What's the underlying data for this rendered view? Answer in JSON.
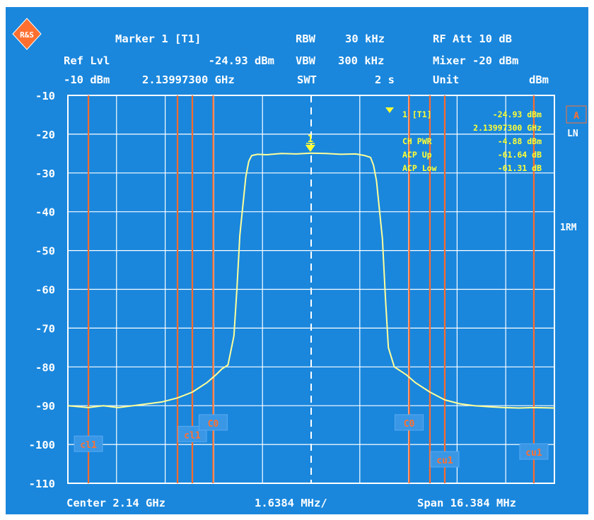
{
  "logo": "R&S",
  "header": {
    "row1": {
      "marker": "Marker 1 [T1]",
      "rbw_label": "RBW",
      "rbw_value": "30 kHz",
      "rf_att": "RF Att 10 dB"
    },
    "row2": {
      "ref_lvl_label": "Ref Lvl",
      "marker_level": "-24.93 dBm",
      "vbw_label": "VBW",
      "vbw_value": "300 kHz",
      "mixer": "Mixer -20 dBm"
    },
    "row3": {
      "ref_lvl_value": "-10 dBm",
      "marker_freq": "2.13997300 GHz",
      "swt_label": "SWT",
      "swt_value": "2 s",
      "unit_label": "Unit",
      "unit_value": "dBm"
    }
  },
  "marker_box": {
    "rows": [
      {
        "label": "1 [T1]",
        "value": "-24.93 dBm"
      },
      {
        "label": "",
        "value": "2.13997300 GHz"
      },
      {
        "label": "CH PWR",
        "value": "-4.88 dBm"
      },
      {
        "label": "ACP Up",
        "value": "-61.64 dB"
      },
      {
        "label": "ACP Low",
        "value": "-61.31 dB"
      }
    ]
  },
  "side_labels": {
    "trace_a": "A",
    "ln": "LN",
    "rm": "1RM"
  },
  "footer": {
    "center": "Center 2.14 GHz",
    "per_div": "1.6384 MHz/",
    "span": "Span 16.384 MHz"
  },
  "colors": {
    "background": "#1a87dd",
    "grid": "#ffffff",
    "trace": "#ffff99",
    "channel_lines": "#ff6a2a",
    "marker": "#ffff33",
    "channel_label_box": "#3a97e6"
  },
  "chart_data": {
    "type": "line",
    "title": "",
    "xlabel": "",
    "ylabel": "",
    "ylim": [
      -110,
      -10
    ],
    "xlim": [
      -8.192,
      8.192
    ],
    "x_unit": "MHz offset from 2.14 GHz",
    "y_ticks": [
      "-10",
      "-20",
      "-30",
      "-40",
      "-50",
      "-60",
      "-70",
      "-80",
      "-90",
      "-100",
      "-110"
    ],
    "grid": true,
    "series": [
      {
        "x": [
          -8.19,
          -7.5,
          -7.0,
          -6.5,
          -6.0,
          -5.5,
          -5.0,
          -4.5,
          -4.0,
          -3.5,
          -3.2,
          -3.0,
          -2.8,
          -2.6,
          -2.5,
          -2.4,
          -2.2,
          -2.1,
          -2.0,
          -1.8,
          -1.5,
          -1.0,
          -0.5,
          0.0,
          0.5,
          1.0,
          1.5,
          1.8,
          2.0,
          2.1,
          2.2,
          2.4,
          2.5,
          2.6,
          2.8,
          3.0,
          3.2,
          3.5,
          4.0,
          4.5,
          5.0,
          5.5,
          6.0,
          6.5,
          7.0,
          7.5,
          8.19
        ],
        "y": [
          -90,
          -90.5,
          -90,
          -90.5,
          -90,
          -89.5,
          -89,
          -88,
          -86.5,
          -84,
          -82,
          -80.5,
          -79.5,
          -72,
          -60,
          -46,
          -31,
          -27,
          -25.5,
          -25.2,
          -25.3,
          -25,
          -25.1,
          -24.9,
          -25,
          -25.2,
          -25.1,
          -25.5,
          -26,
          -28,
          -32,
          -47,
          -62,
          -75,
          -80,
          -81,
          -82,
          -84,
          -86.5,
          -88.5,
          -89.5,
          -90,
          -90.3,
          -90.5,
          -90.6,
          -90.5,
          -90.6
        ]
      }
    ],
    "marker": {
      "label": "1",
      "x": -0.027,
      "y": -24.93
    },
    "center_line_x": 0,
    "channel_lines": [
      {
        "x": -7.5,
        "label": "cl1",
        "label_level": -100
      },
      {
        "x": -4.5,
        "label": "",
        "label_level": null
      },
      {
        "x": -4.0,
        "label": "cl1",
        "label_level": -97.5
      },
      {
        "x": -3.3,
        "label": "C0",
        "label_level": -94.5
      },
      {
        "x": 3.3,
        "label": "C0",
        "label_level": -94.5
      },
      {
        "x": 4.0,
        "label": "",
        "label_level": null
      },
      {
        "x": 4.5,
        "label": "cu1",
        "label_level": -104
      },
      {
        "x": 7.5,
        "label": "cu1",
        "label_level": -102
      }
    ]
  }
}
